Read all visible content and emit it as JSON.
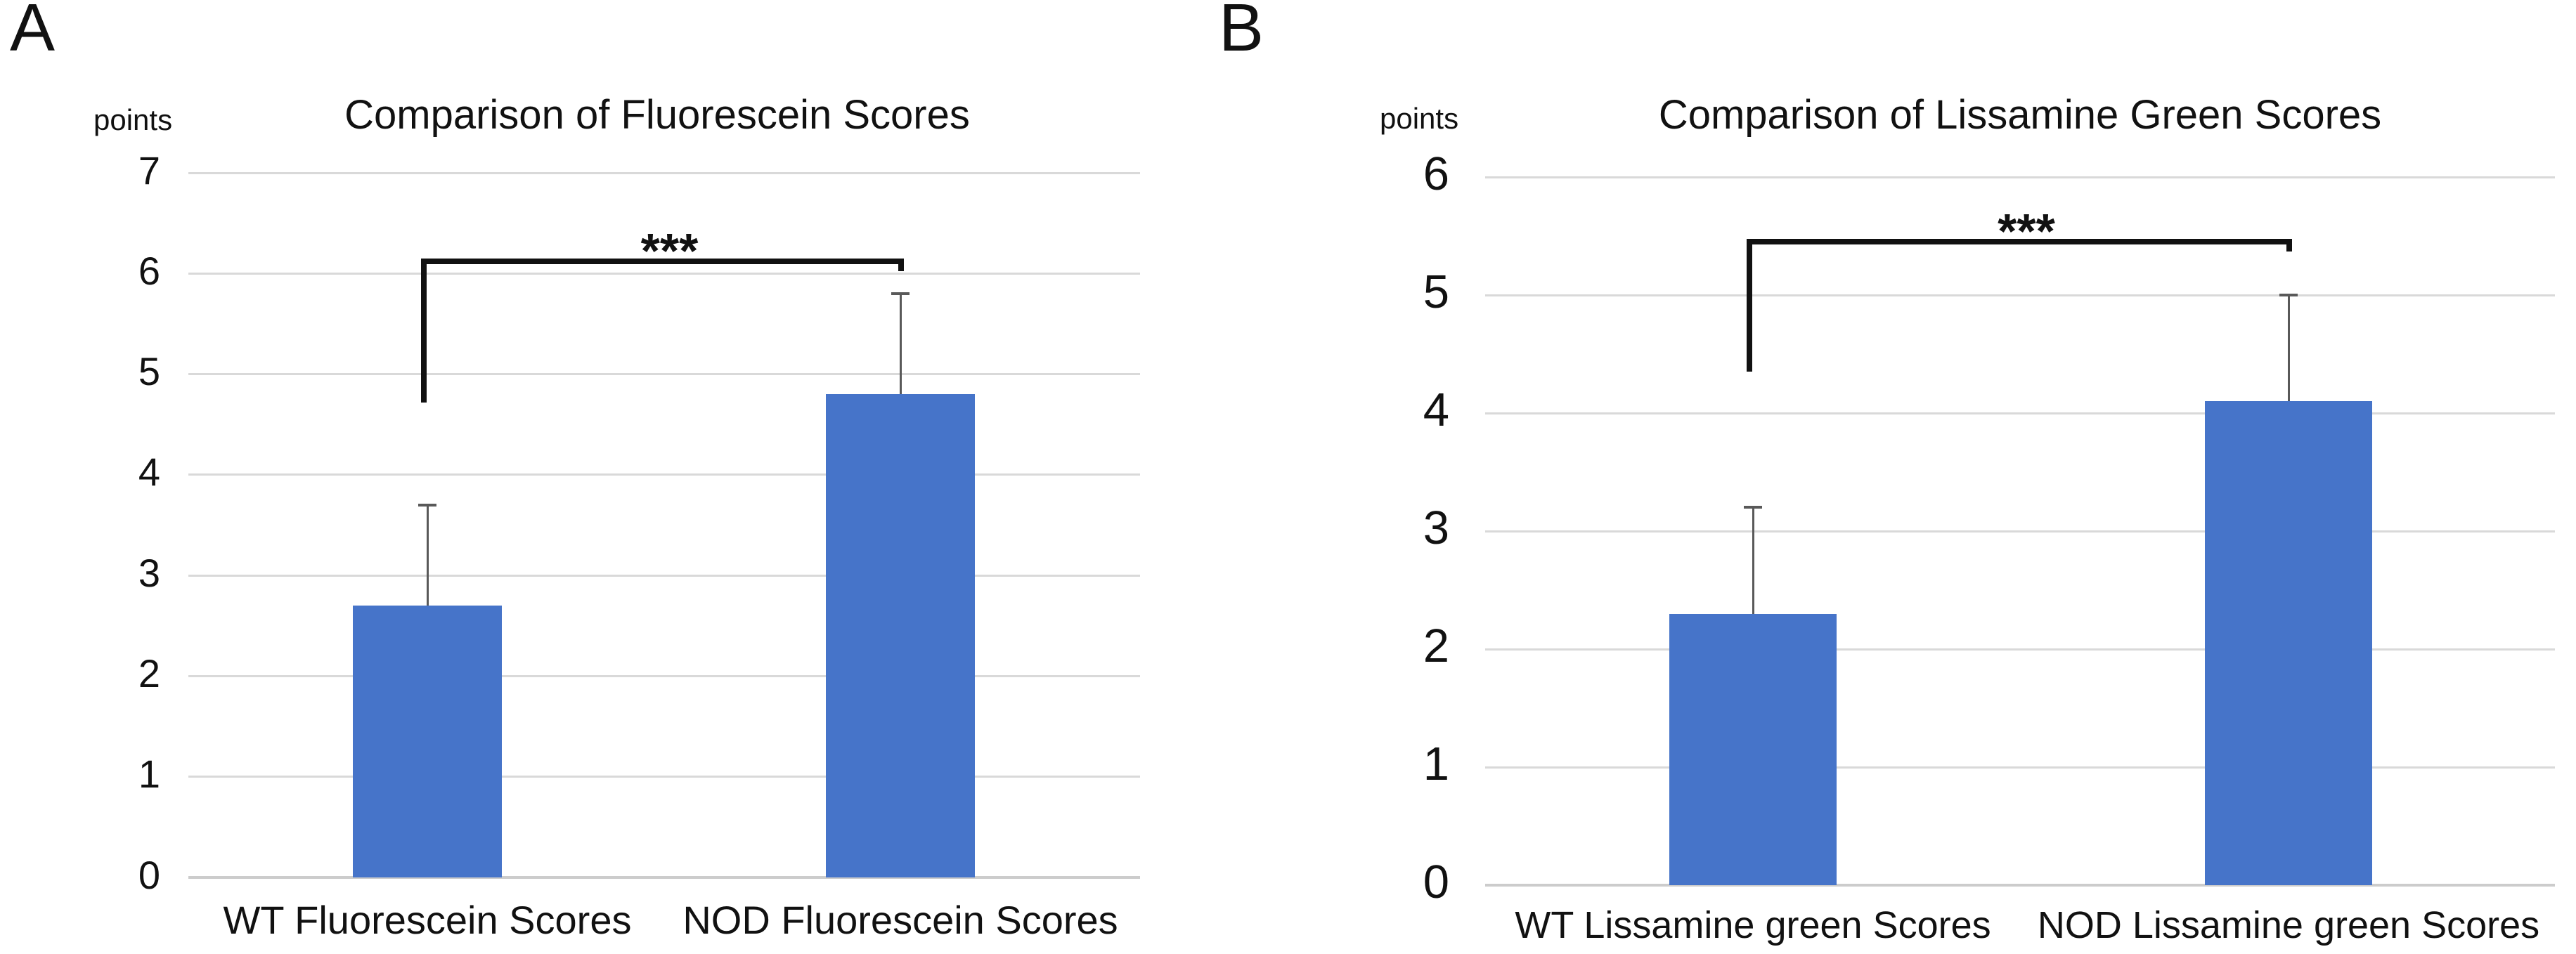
{
  "figure": {
    "background": "#ffffff",
    "panels": [
      {
        "letter": "A",
        "axis_label": "points"
      },
      {
        "letter": "B",
        "axis_label": "points"
      }
    ]
  },
  "colors": {
    "bar": "#4674C9",
    "gridline": "#d9d9d9",
    "baseline": "#cccccc",
    "error_bar": "#595959",
    "bracket": "#111111",
    "text": "#111111"
  },
  "chart_data": [
    {
      "type": "bar",
      "title": "Comparison of Fluorescein Scores",
      "ylabel": "points",
      "xlabel": "",
      "categories": [
        "WT Fluorescein Scores",
        "NOD Fluorescein Scores"
      ],
      "values": [
        2.7,
        4.8
      ],
      "errors_upper": [
        1.0,
        1.0
      ],
      "ylim": [
        0,
        7
      ],
      "ytick_step": 1,
      "grid": true,
      "legend": "none",
      "significance": {
        "label": "***",
        "between": [
          0,
          1
        ],
        "y": 6.12,
        "drop_to": 4.72
      }
    },
    {
      "type": "bar",
      "title": "Comparison of Lissamine Green Scores",
      "ylabel": "points",
      "xlabel": "",
      "categories": [
        "WT Lissamine green Scores",
        "NOD Lissamine green Scores"
      ],
      "values": [
        2.3,
        4.1
      ],
      "errors_upper": [
        0.9,
        0.9
      ],
      "ylim": [
        0,
        6
      ],
      "ytick_step": 1,
      "grid": true,
      "legend": "none",
      "significance": {
        "label": "***",
        "between": [
          0,
          1
        ],
        "y": 5.45,
        "drop_to": 4.35
      }
    }
  ]
}
